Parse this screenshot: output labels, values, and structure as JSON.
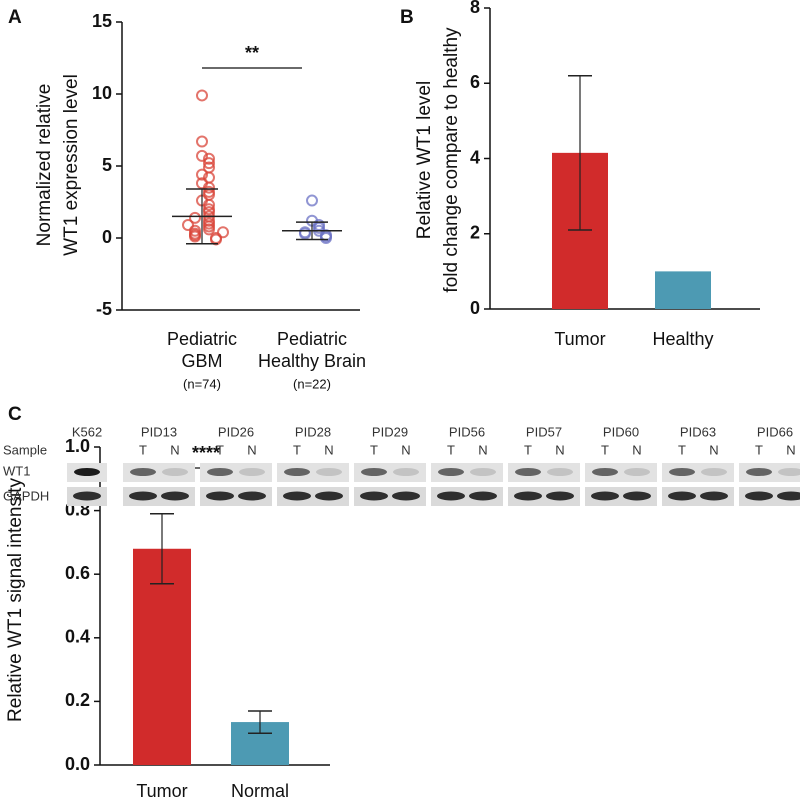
{
  "chart_data": [
    {
      "type": "dot",
      "panel": "A",
      "ylabel": [
        "Normalized  relative",
        "WT1 expression level"
      ],
      "categories": [
        [
          "Pediatric",
          "GBM"
        ],
        [
          "Pediatric",
          "Healthy Brain"
        ]
      ],
      "n_labels": [
        "(n=74)",
        "(n=22)"
      ],
      "groups": [
        {
          "color": "#d9453a",
          "mean": 1.5,
          "sd": 1.9,
          "values": [
            9.9,
            6.7,
            5.7,
            5.5,
            5.2,
            4.9,
            4.4,
            4.2,
            3.8,
            3.5,
            3.2,
            3.0,
            2.6,
            2.3,
            2.0,
            1.8,
            1.5,
            1.2,
            1.0,
            0.8,
            0.6,
            0.5,
            0.3,
            0.2,
            0.1,
            0.0,
            -0.1,
            0.4,
            0.9,
            1.4
          ]
        },
        {
          "color": "#6b72c4",
          "mean": 0.5,
          "sd": 0.6,
          "values": [
            2.6,
            1.2,
            0.9,
            0.7,
            0.5,
            0.4,
            0.3,
            0.2,
            0.1,
            0.0
          ]
        }
      ],
      "significance": "**",
      "ylim": [
        -5,
        15
      ],
      "yticks": [
        -5,
        0,
        5,
        10,
        15
      ]
    },
    {
      "type": "bar",
      "panel": "B",
      "ylabel": [
        "Relative WT1 level",
        "fold change compare to healthy"
      ],
      "categories": [
        "Tumor",
        "Healthy"
      ],
      "values": [
        4.15,
        1.0
      ],
      "errors": [
        2.05,
        null
      ],
      "colors": [
        "#d12b2b",
        "#4d9ab3"
      ],
      "ylim": [
        0,
        8
      ],
      "yticks": [
        0,
        2,
        4,
        6,
        8
      ]
    },
    {
      "type": "bar",
      "panel": "C",
      "ylabel": [
        "Relative WT1 signal intensity"
      ],
      "categories": [
        "Tumor",
        "Normal"
      ],
      "values": [
        0.68,
        0.135
      ],
      "errors": [
        0.11,
        0.035
      ],
      "colors": [
        "#d12b2b",
        "#4d9ab3"
      ],
      "significance": "****",
      "ylim": [
        0,
        1
      ],
      "yticks": [
        {
          "value": 0,
          "label": "0.0"
        },
        0.2,
        0.4,
        0.6,
        0.8,
        {
          "value": 1,
          "label": "1.0"
        }
      ]
    }
  ],
  "blot": {
    "samples": [
      "K562",
      "PID13",
      "PID26",
      "PID28",
      "PID29",
      "PID56",
      "PID57",
      "PID60",
      "PID63",
      "PID66"
    ],
    "lane_labels": [
      "T",
      "N"
    ],
    "row_labels": [
      "Sample",
      "WT1",
      "GAPDH"
    ]
  }
}
